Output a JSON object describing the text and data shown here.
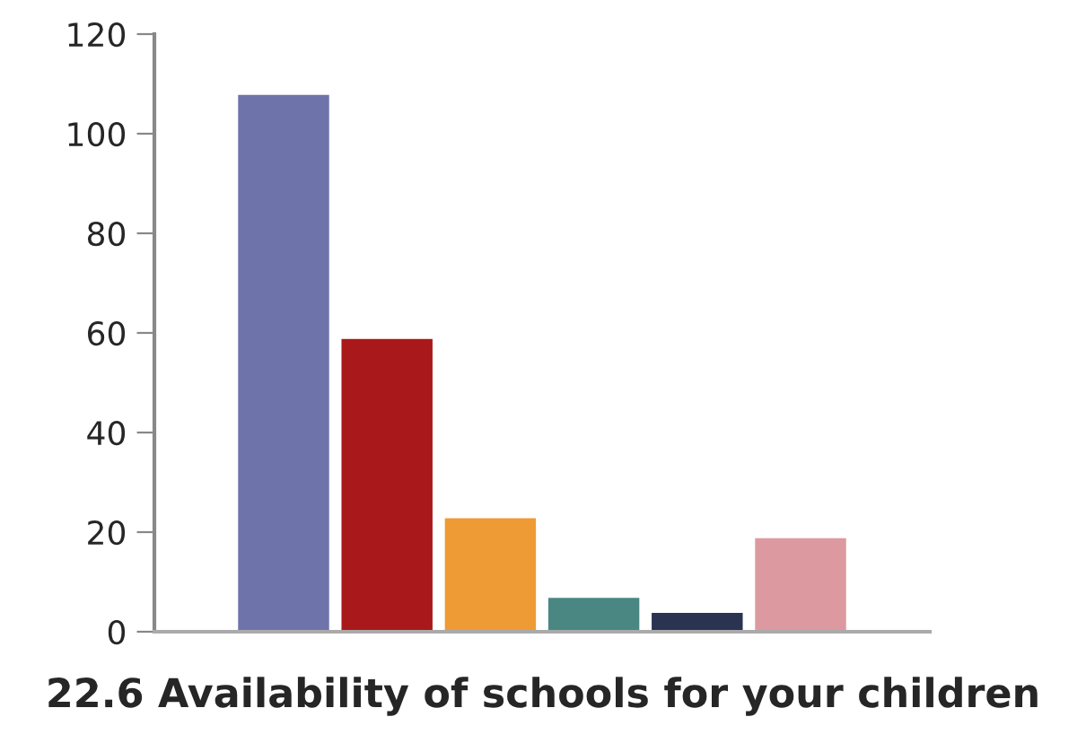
{
  "chart_data": {
    "type": "bar",
    "title": "22.6 Availability of schools for your children",
    "categories": [
      null,
      null,
      null,
      null,
      null,
      null
    ],
    "values": [
      108,
      59,
      23,
      7,
      4,
      19
    ],
    "colors": [
      "#6e74aa",
      "#a9191b",
      "#ee9b35",
      "#4a8782",
      "#2b3352",
      "#dc9aa0"
    ],
    "ylim": [
      0,
      120
    ],
    "yticks": [
      0,
      20,
      40,
      60,
      80,
      100,
      120
    ],
    "grid": false
  }
}
